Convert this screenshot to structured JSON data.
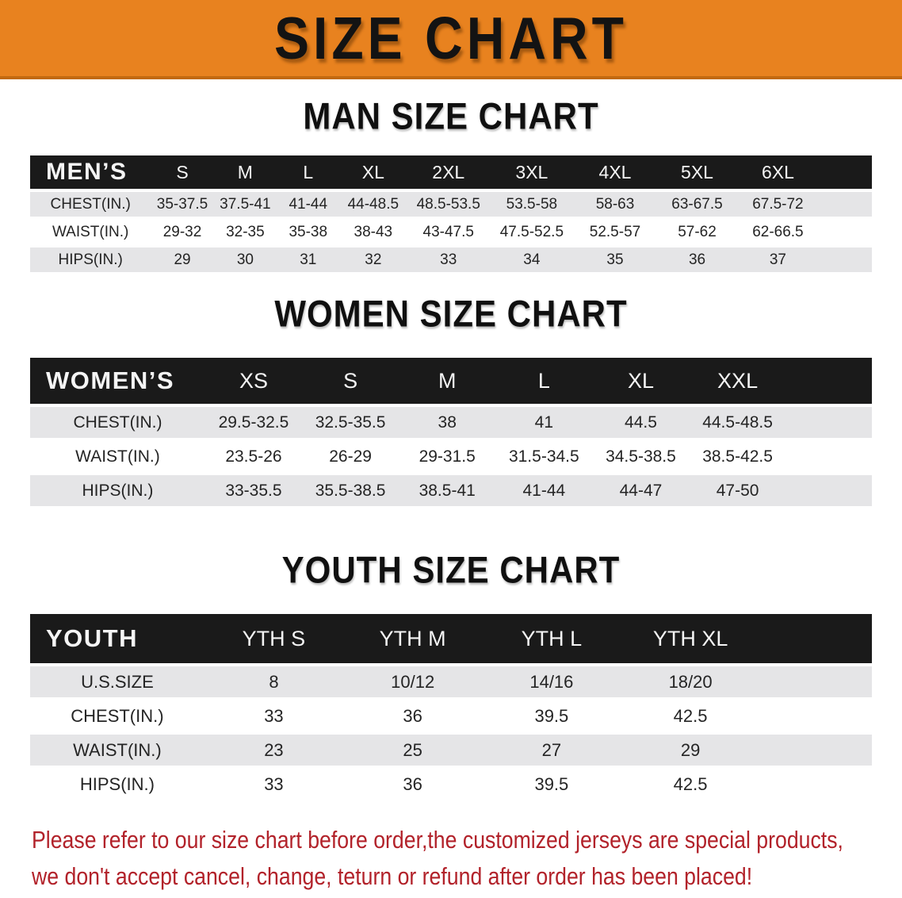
{
  "banner": {
    "title": "SIZE CHART",
    "bg_color": "#E8821F"
  },
  "men_chart": {
    "heading": "MAN SIZE CHART",
    "header_label": "MEN’S",
    "columns": [
      "S",
      "M",
      "L",
      "XL",
      "2XL",
      "3XL",
      "4XL",
      "5XL",
      "6XL"
    ],
    "rows": [
      {
        "label": "CHEST(IN.)",
        "values": [
          "35-37.5",
          "37.5-41",
          "41-44",
          "44-48.5",
          "48.5-53.5",
          "53.5-58",
          "58-63",
          "63-67.5",
          "67.5-72"
        ]
      },
      {
        "label": "WAIST(IN.)",
        "values": [
          "29-32",
          "32-35",
          "35-38",
          "38-43",
          "43-47.5",
          "47.5-52.5",
          "52.5-57",
          "57-62",
          "62-66.5"
        ]
      },
      {
        "label": "HIPS(IN.)",
        "values": [
          "29",
          "30",
          "31",
          "32",
          "33",
          "34",
          "35",
          "36",
          "37"
        ]
      }
    ]
  },
  "women_chart": {
    "heading": "WOMEN SIZE CHART",
    "header_label": "WOMEN’S",
    "columns": [
      "XS",
      "S",
      "M",
      "L",
      "XL",
      "XXL"
    ],
    "rows": [
      {
        "label": "CHEST(IN.)",
        "values": [
          "29.5-32.5",
          "32.5-35.5",
          "38",
          "41",
          "44.5",
          "44.5-48.5"
        ]
      },
      {
        "label": "WAIST(IN.)",
        "values": [
          "23.5-26",
          "26-29",
          "29-31.5",
          "31.5-34.5",
          "34.5-38.5",
          "38.5-42.5"
        ]
      },
      {
        "label": "HIPS(IN.)",
        "values": [
          "33-35.5",
          "35.5-38.5",
          "38.5-41",
          "41-44",
          "44-47",
          "47-50"
        ]
      }
    ]
  },
  "youth_chart": {
    "heading": "YOUTH SIZE CHART",
    "header_label": "YOUTH",
    "columns": [
      "YTH S",
      "YTH M",
      "YTH L",
      "YTH XL"
    ],
    "rows": [
      {
        "label": "U.S.SIZE",
        "values": [
          "8",
          "10/12",
          "14/16",
          "18/20"
        ]
      },
      {
        "label": "CHEST(IN.)",
        "values": [
          "33",
          "36",
          "39.5",
          "42.5"
        ]
      },
      {
        "label": "WAIST(IN.)",
        "values": [
          "23",
          "25",
          "27",
          "29"
        ]
      },
      {
        "label": "HIPS(IN.)",
        "values": [
          "33",
          "36",
          "39.5",
          "42.5"
        ]
      }
    ]
  },
  "footer": {
    "line1": "Please refer to our size chart before order,the customized jerseys are special products,",
    "line2": "we don't accept cancel, change, teturn or refund after order has been placed!",
    "text_color": "#B2222A"
  }
}
